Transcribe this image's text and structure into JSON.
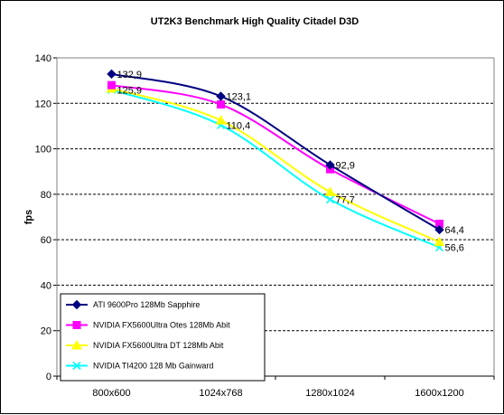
{
  "chart_data": {
    "type": "line",
    "title": "UT2K3 Benchmark High Quality Citadel D3D",
    "xlabel": "",
    "ylabel": "fps",
    "categories": [
      "800x600",
      "1024x768",
      "1280x1024",
      "1600x1200"
    ],
    "ylim": [
      0,
      140
    ],
    "yticks": [
      0,
      20,
      40,
      60,
      80,
      100,
      120,
      140
    ],
    "grid": "horizontal dashed",
    "legend_position": "bottom-left",
    "series": [
      {
        "name": "ATI 9600Pro 128Mb Sapphire",
        "values": [
          132.9,
          123.1,
          92.9,
          64.4
        ],
        "color": "#000080",
        "marker": "diamond"
      },
      {
        "name": "NVIDIA FX5600Ultra Otes 128Mb Abit",
        "values": [
          128.0,
          119.5,
          91.0,
          67.0
        ],
        "color": "#ff00ff",
        "marker": "square"
      },
      {
        "name": "NVIDIA FX5600Ultra DT 128Mb Abit",
        "values": [
          126.5,
          112.5,
          81.0,
          59.0
        ],
        "color": "#ffff00",
        "marker": "triangle"
      },
      {
        "name": "NVIDIA TI4200 128 Mb Gainward",
        "values": [
          125.9,
          110.4,
          77.7,
          56.6
        ],
        "color": "#00ffff",
        "marker": "x"
      }
    ],
    "data_labels": [
      {
        "series": 0,
        "point": 0,
        "text": "132,9"
      },
      {
        "series": 0,
        "point": 1,
        "text": "123,1"
      },
      {
        "series": 0,
        "point": 2,
        "text": "92,9"
      },
      {
        "series": 0,
        "point": 3,
        "text": "64,4"
      },
      {
        "series": 3,
        "point": 0,
        "text": "125,9"
      },
      {
        "series": 3,
        "point": 1,
        "text": "110,4"
      },
      {
        "series": 3,
        "point": 2,
        "text": "77,7"
      },
      {
        "series": 3,
        "point": 3,
        "text": "56,6"
      }
    ],
    "plot_background": "#ffffff",
    "chart_area_border": "#000000"
  }
}
